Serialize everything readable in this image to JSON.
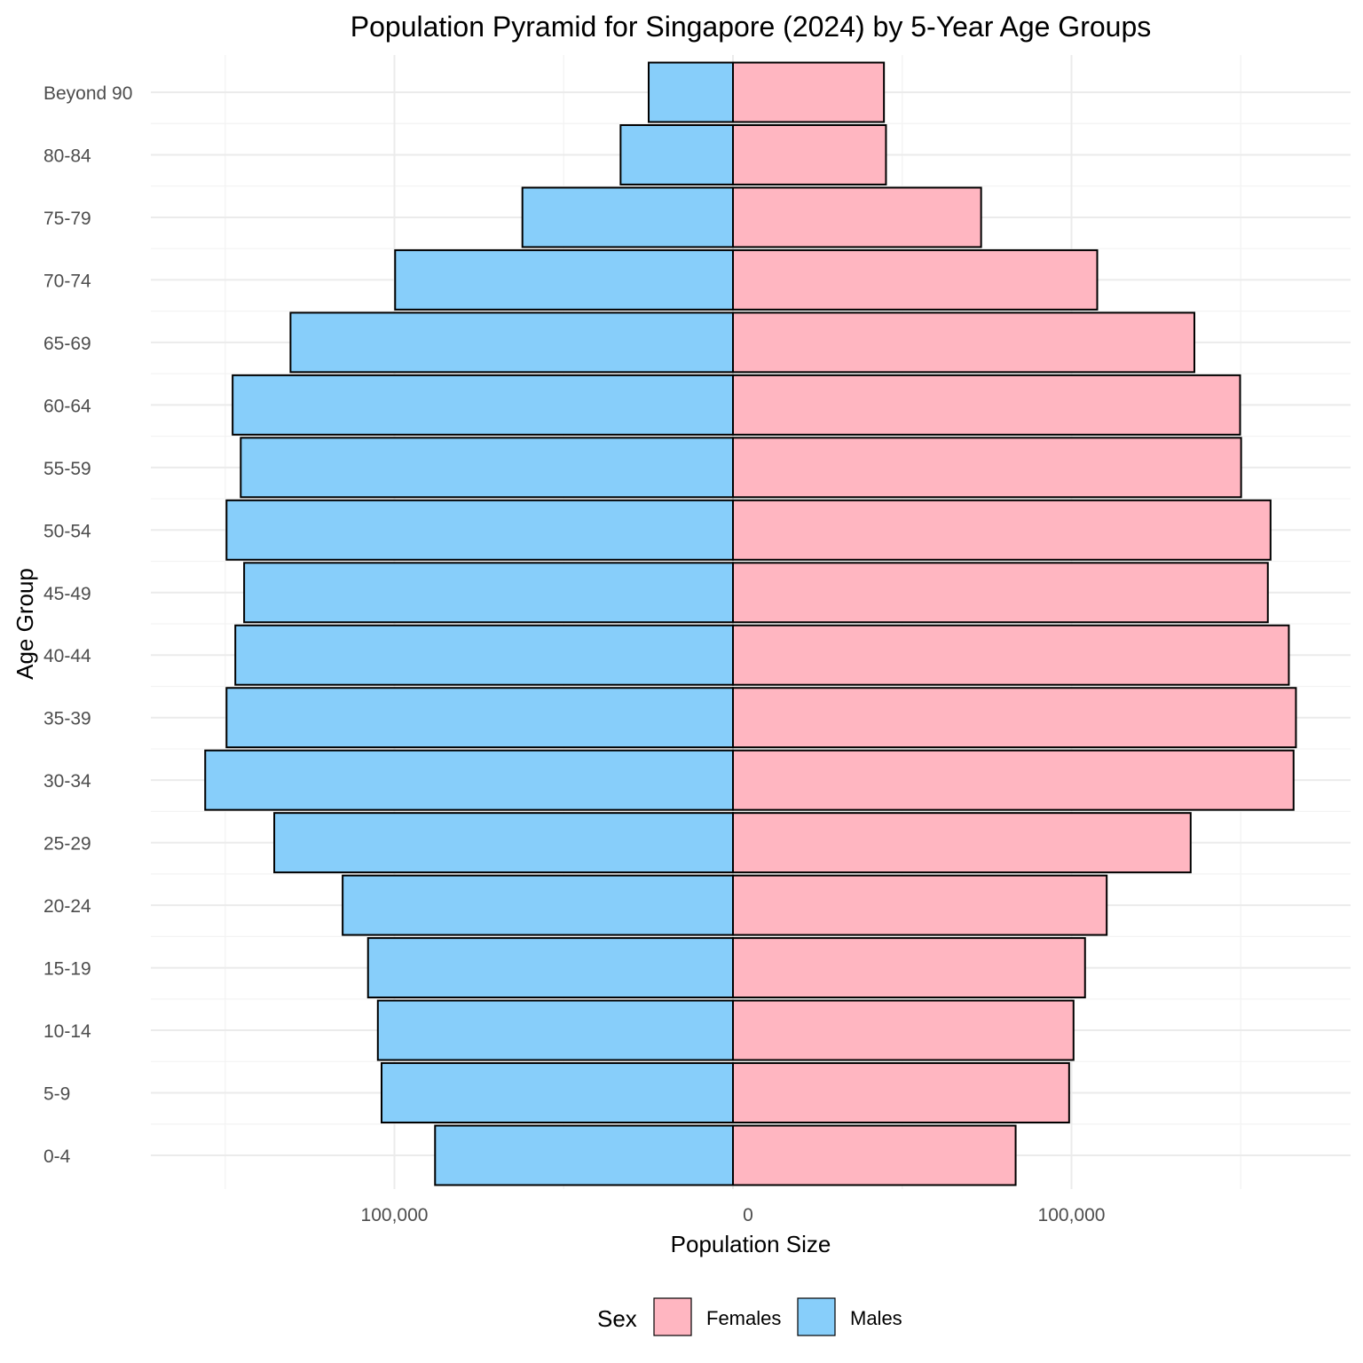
{
  "chart_data": {
    "type": "bar",
    "orientation": "horizontal",
    "title": "Population Pyramid for Singapore (2024) by 5-Year Age Groups",
    "xlabel": "Population Size",
    "ylabel": "Age Group",
    "categories": [
      "0-4",
      "5-9",
      "10-14",
      "15-19",
      "20-24",
      "25-29",
      "30-34",
      "35-39",
      "40-44",
      "45-49",
      "50-54",
      "55-59",
      "60-64",
      "65-69",
      "70-74",
      "75-79",
      "80-84",
      "Beyond 90"
    ],
    "series": [
      {
        "name": "Females",
        "color": "#FFB6C1",
        "values": [
          83500,
          99300,
          100600,
          104000,
          110400,
          135200,
          165600,
          166300,
          164200,
          158000,
          158800,
          150100,
          149800,
          136300,
          107600,
          73300,
          45200,
          44600
        ]
      },
      {
        "name": "Males",
        "color": "#87CEFA",
        "values": [
          -88000,
          -103800,
          -104900,
          -107800,
          -115300,
          -135500,
          -155900,
          -149600,
          -147000,
          -144400,
          -149600,
          -145400,
          -147800,
          -130700,
          -99800,
          -62200,
          -33200,
          -24900
        ]
      }
    ],
    "x_ticks": [
      {
        "value": -100000,
        "label": "100,000"
      },
      {
        "value": 0,
        "label": "0"
      },
      {
        "value": 100000,
        "label": "100,000"
      }
    ],
    "xlim": [
      -172000,
      182000
    ],
    "grid": true,
    "legend": {
      "title": "Sex",
      "placement": "bottom",
      "entries": [
        {
          "label": "Females",
          "color": "#FFB6C1"
        },
        {
          "label": "Males",
          "color": "#87CEFA"
        }
      ]
    }
  }
}
